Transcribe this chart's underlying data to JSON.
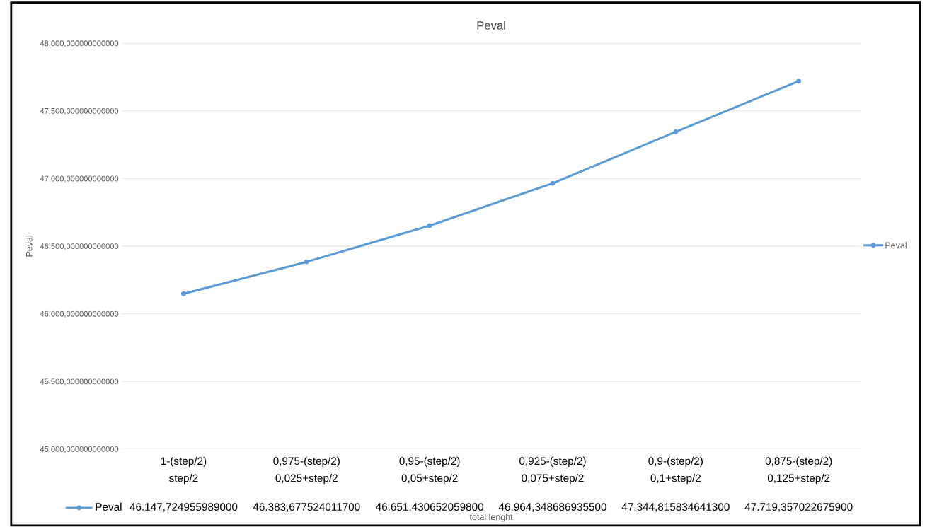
{
  "chart_data": {
    "type": "line",
    "title": "Peval",
    "xlabel": "total lenght",
    "ylabel": "Peval",
    "categories": [
      "1-(step/2)\nstep/2",
      "0,975-(step/2)\n0,025+step/2",
      "0,95-(step/2)\n0,05+step/2",
      "0,925-(step/2)\n0,075+step/2",
      "0,9-(step/2)\n0,1+step/2",
      "0,875-(step/2)\n0,125+step/2"
    ],
    "series": [
      {
        "name": "Peval",
        "color": "#5b9bd5",
        "values": [
          46147.724955989,
          46383.6775240117,
          46651.4306520598,
          46964.3486869355,
          47344.8158346413,
          47719.3570226759
        ],
        "value_labels": [
          "46.147,724955989000",
          "46.383,677524011700",
          "46.651,430652059800",
          "46.964,348686935500",
          "47.344,815834641300",
          "47.719,357022675900"
        ]
      }
    ],
    "ylim": [
      45000,
      48000
    ],
    "yticks": [
      {
        "value": 45000,
        "label": "45.000,000000000000"
      },
      {
        "value": 45500,
        "label": "45.500,000000000000"
      },
      {
        "value": 46000,
        "label": "46.000,000000000000"
      },
      {
        "value": 46500,
        "label": "46.500,000000000000"
      },
      {
        "value": 47000,
        "label": "47.000,000000000000"
      },
      {
        "value": 47500,
        "label": "47.500,000000000000"
      },
      {
        "value": 48000,
        "label": "48.000,000000000000"
      }
    ],
    "grid": "y",
    "legend": "right",
    "marker": "circle",
    "line_style": "solid"
  }
}
